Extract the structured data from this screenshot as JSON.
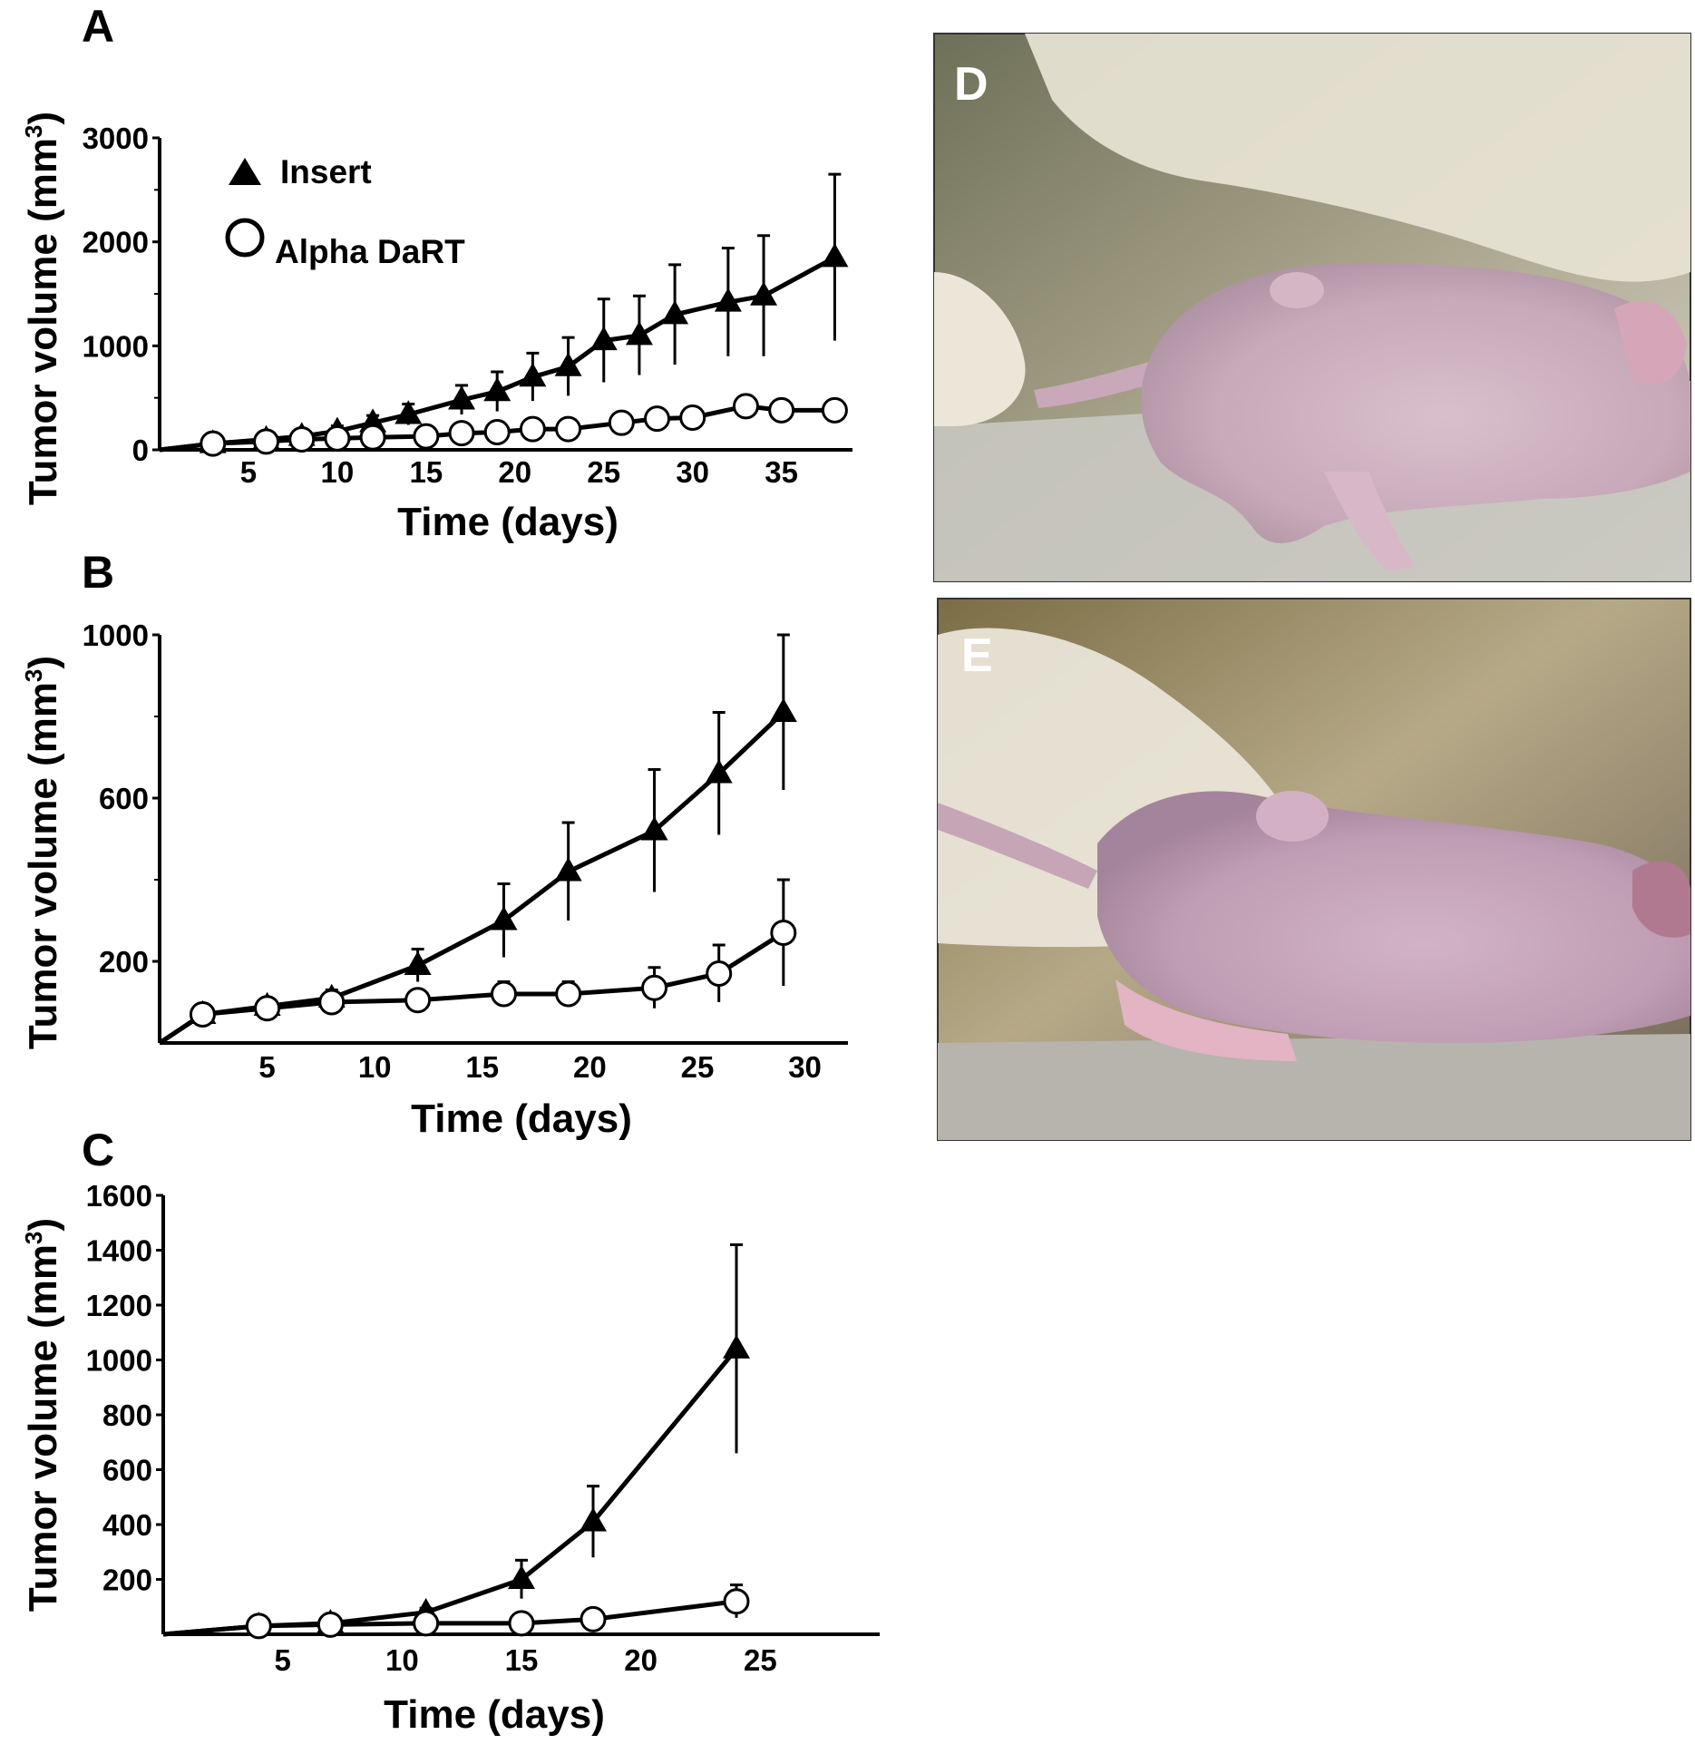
{
  "panels": {
    "a": {
      "letter": "A"
    },
    "b": {
      "letter": "B"
    },
    "c": {
      "letter": "C"
    },
    "d": {
      "letter": "D"
    },
    "e": {
      "letter": "E"
    }
  },
  "legend": {
    "insert": "Insert",
    "alpha": "Alpha DaRT"
  },
  "chart_data": [
    {
      "id": "A",
      "type": "line",
      "xlabel": "Time (days)",
      "ylabel": "Tumor volume (mm",
      "ylabel_sup": "3",
      "ylabel_close": ")",
      "xlim": [
        0,
        39
      ],
      "ylim": [
        0,
        3000
      ],
      "xticks": [
        5,
        10,
        15,
        20,
        25,
        30,
        35
      ],
      "yticks": [
        0,
        1000,
        2000,
        3000
      ],
      "yminor": [
        500,
        1500,
        2500
      ],
      "series": [
        {
          "name": "Insert",
          "marker": "triangle",
          "x": [
            3,
            6,
            8,
            10,
            12,
            14,
            17,
            19,
            21,
            23,
            25,
            27,
            29,
            32,
            34,
            38
          ],
          "values": [
            60,
            100,
            130,
            180,
            260,
            340,
            480,
            560,
            700,
            800,
            1050,
            1100,
            1300,
            1420,
            1480,
            1850
          ],
          "errors": [
            20,
            30,
            40,
            50,
            70,
            100,
            140,
            190,
            230,
            280,
            400,
            380,
            480,
            520,
            580,
            800
          ]
        },
        {
          "name": "Alpha DaRT",
          "marker": "circle",
          "x": [
            3,
            6,
            8,
            10,
            12,
            15,
            17,
            19,
            21,
            23,
            26,
            28,
            30,
            33,
            35,
            38
          ],
          "values": [
            60,
            80,
            100,
            110,
            120,
            130,
            160,
            170,
            200,
            200,
            260,
            300,
            310,
            420,
            380,
            380
          ],
          "errors": [
            10,
            10,
            15,
            15,
            20,
            25,
            30,
            30,
            35,
            35,
            40,
            45,
            45,
            50,
            50,
            50
          ]
        }
      ]
    },
    {
      "id": "B",
      "type": "line",
      "xlabel": "Time (days)",
      "ylabel": "Tumor volume (mm",
      "ylabel_sup": "3",
      "ylabel_close": ")",
      "xlim": [
        0,
        32
      ],
      "ylim": [
        0,
        1000
      ],
      "xticks": [
        5,
        10,
        15,
        20,
        25,
        30
      ],
      "yticks": [
        200,
        600,
        1000
      ],
      "yminor": [
        400,
        800
      ],
      "series": [
        {
          "name": "Insert",
          "marker": "triangle",
          "x": [
            2,
            5,
            8,
            12,
            16,
            19,
            23,
            26,
            29
          ],
          "values": [
            70,
            90,
            110,
            190,
            300,
            420,
            520,
            660,
            810
          ],
          "errors": [
            10,
            15,
            20,
            40,
            90,
            120,
            150,
            150,
            190
          ]
        },
        {
          "name": "Alpha DaRT",
          "marker": "circle",
          "x": [
            2,
            5,
            8,
            12,
            16,
            19,
            23,
            26,
            29
          ],
          "values": [
            70,
            85,
            100,
            105,
            120,
            120,
            135,
            170,
            270
          ],
          "errors": [
            10,
            12,
            15,
            20,
            30,
            30,
            50,
            70,
            130
          ]
        }
      ]
    },
    {
      "id": "C",
      "type": "line",
      "xlabel": "Time (days)",
      "ylabel": "Tumor volume (mm",
      "ylabel_sup": "3",
      "ylabel_close": ")",
      "xlim": [
        0,
        30
      ],
      "ylim": [
        0,
        1600
      ],
      "xticks": [
        5,
        10,
        15,
        20,
        25
      ],
      "yticks": [
        200,
        400,
        600,
        800,
        1000,
        1200,
        1400,
        1600
      ],
      "yminor": [],
      "series": [
        {
          "name": "Insert",
          "marker": "triangle",
          "x": [
            4,
            7,
            11,
            15,
            18,
            24
          ],
          "values": [
            30,
            40,
            80,
            200,
            410,
            1040
          ],
          "errors": [
            5,
            8,
            15,
            70,
            130,
            380
          ]
        },
        {
          "name": "Alpha DaRT",
          "marker": "circle",
          "x": [
            4,
            7,
            11,
            15,
            18,
            24
          ],
          "values": [
            30,
            35,
            40,
            40,
            55,
            120
          ],
          "errors": [
            5,
            5,
            8,
            8,
            12,
            60
          ]
        }
      ]
    }
  ]
}
